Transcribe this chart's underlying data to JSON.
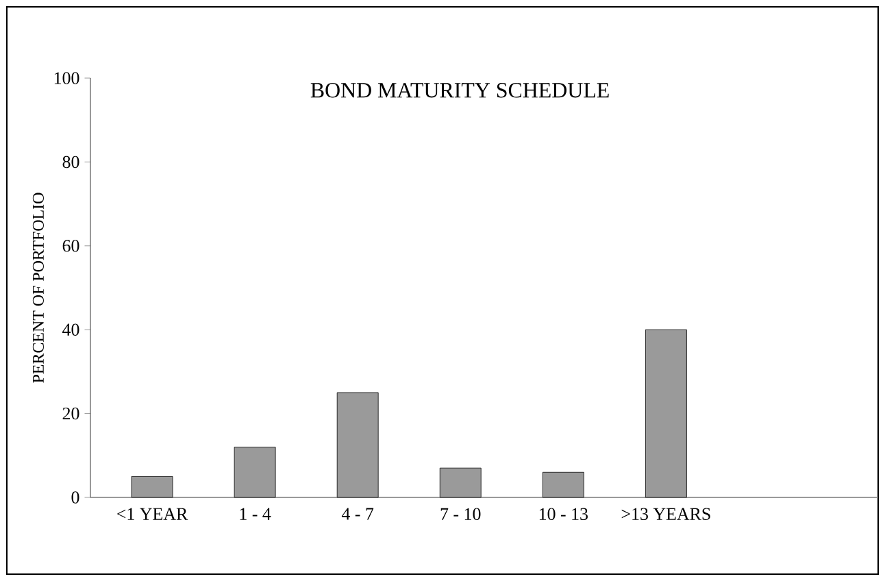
{
  "chart_data": {
    "type": "bar",
    "title": "BOND MATURITY SCHEDULE",
    "ylabel": "PERCENT OF PORTFOLIO",
    "categories": [
      "<1 YEAR",
      "1 - 4",
      "4 - 7",
      "7 - 10",
      "10 - 13",
      ">13 YEARS"
    ],
    "values": [
      5,
      12,
      25,
      7,
      6,
      40
    ],
    "color": "#9a9a9a",
    "ylim": [
      0,
      100
    ],
    "yticks": [
      0,
      20,
      40,
      60,
      80,
      100
    ],
    "grid": false
  }
}
